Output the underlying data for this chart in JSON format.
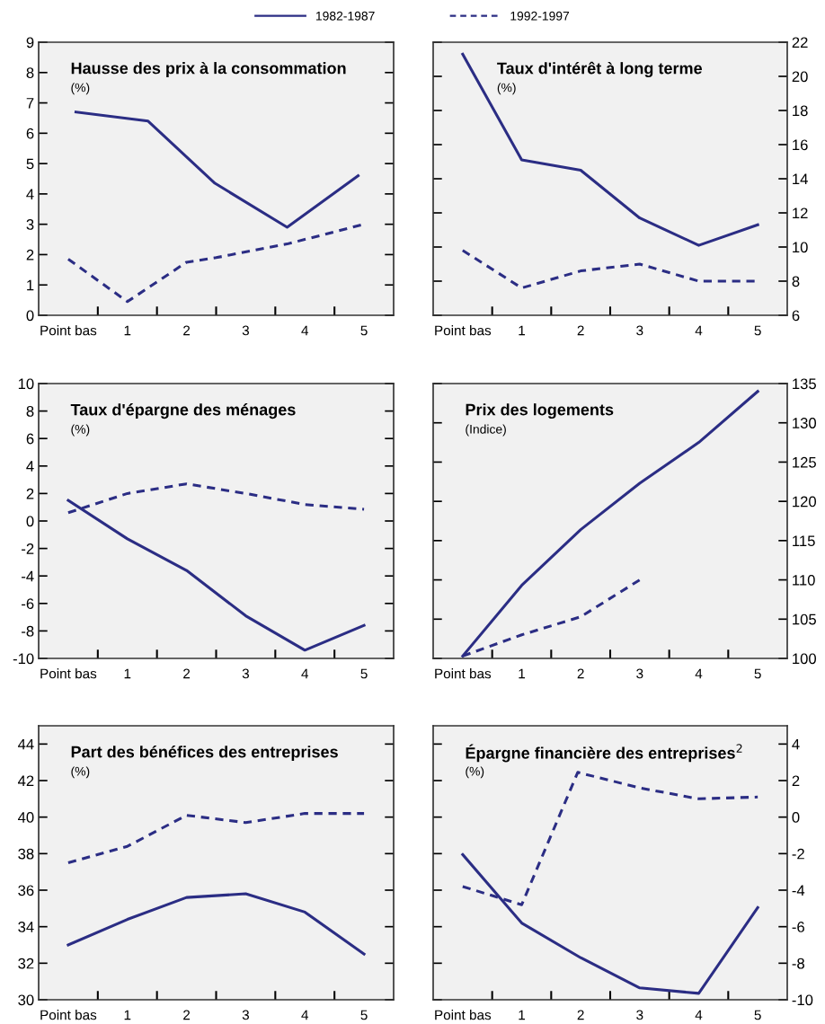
{
  "chart_data": [
    {
      "type": "line",
      "title": "Hausse des prix à la consommation",
      "subtitle": "(%)",
      "legend": "top",
      "xlim": [
        -0.5,
        5.5
      ],
      "xticks": [
        {
          "value": 0,
          "label": "Point bas"
        },
        1,
        2,
        3,
        4,
        5,
        {
          "value": 0.5,
          "label": null
        },
        {
          "value": 1.5,
          "label": null
        },
        {
          "value": 2.5,
          "label": null
        },
        {
          "value": 3.5,
          "label": null
        },
        {
          "value": 4.5,
          "label": null
        }
      ],
      "ylim": [
        0,
        9
      ],
      "yticks": [
        0,
        1,
        2,
        3,
        4,
        5,
        6,
        7,
        8,
        9
      ],
      "series": [
        {
          "name": "1982-1987",
          "color": "#2b2d84",
          "line_style": "solid",
          "x": [
            0.13,
            1.35,
            2.48,
            3.7,
            4.9
          ],
          "values": [
            6.7,
            6.4,
            4.35,
            2.9,
            4.6
          ]
        },
        {
          "name": "1992-1997",
          "color": "#2b2d84",
          "line_style": "dashed",
          "x": [
            0,
            1,
            2,
            2.5,
            3.7,
            5
          ],
          "values": [
            1.85,
            0.45,
            1.75,
            1.9,
            2.35,
            3.0
          ]
        }
      ]
    },
    {
      "type": "line",
      "title": "Taux d'intérêt à long terme",
      "subtitle": "(%)",
      "xlim": [
        -0.5,
        5.5
      ],
      "xticks": [
        {
          "value": 0,
          "label": "Point bas"
        },
        1,
        2,
        3,
        4,
        5,
        {
          "value": 0.5,
          "label": null
        },
        {
          "value": 1.5,
          "label": null
        },
        {
          "value": 2.5,
          "label": null
        },
        {
          "value": 3.5,
          "label": null
        },
        {
          "value": 4.5,
          "label": null
        }
      ],
      "ylim": [
        6,
        22
      ],
      "yticks": [
        6,
        8,
        10,
        12,
        14,
        16,
        18,
        20,
        22
      ],
      "series": [
        {
          "color": "#2b2d84",
          "line_style": "solid",
          "x": [
            0,
            1,
            2,
            3,
            4,
            5
          ],
          "values": [
            21.3,
            15.1,
            14.5,
            11.7,
            10.1,
            11.3
          ]
        },
        {
          "color": "#2b2d84",
          "line_style": "dashed",
          "x": [
            0,
            1,
            2,
            3,
            4,
            5
          ],
          "values": [
            9.8,
            7.6,
            8.6,
            9.0,
            8.0,
            8.0
          ]
        }
      ]
    },
    {
      "type": "line",
      "title": "Taux d'épargne des ménages",
      "subtitle": "(%)",
      "xlim": [
        -0.5,
        5.5
      ],
      "xticks": [
        {
          "value": 0,
          "label": "Point bas"
        },
        1,
        2,
        3,
        4,
        5,
        {
          "value": 0.5,
          "label": null
        },
        {
          "value": 1.5,
          "label": null
        },
        {
          "value": 2.5,
          "label": null
        },
        {
          "value": 3.5,
          "label": null
        },
        {
          "value": 4.5,
          "label": null
        }
      ],
      "ylim": [
        -10,
        10
      ],
      "yticks": [
        -10,
        -8,
        -6,
        -4,
        -2,
        0,
        2,
        4,
        6,
        8,
        10
      ],
      "series": [
        {
          "color": "#2b2d84",
          "line_style": "solid",
          "x": [
            0,
            1,
            2,
            3,
            4,
            5
          ],
          "values": [
            1.5,
            -1.3,
            -3.6,
            -6.9,
            -9.4,
            -7.6
          ]
        },
        {
          "color": "#2b2d84",
          "line_style": "dashed",
          "x": [
            0,
            1,
            2,
            3,
            4,
            5
          ],
          "values": [
            0.6,
            2.0,
            2.7,
            2.0,
            1.2,
            0.85
          ]
        }
      ]
    },
    {
      "type": "line",
      "title": "Prix des logements",
      "subtitle": "(Indice)",
      "xlim": [
        -0.5,
        5.5
      ],
      "xticks": [
        {
          "value": 0,
          "label": "Point bas"
        },
        1,
        2,
        3,
        4,
        5,
        {
          "value": 0.5,
          "label": null
        },
        {
          "value": 1.5,
          "label": null
        },
        {
          "value": 2.5,
          "label": null
        },
        {
          "value": 3.5,
          "label": null
        },
        {
          "value": 4.5,
          "label": null
        }
      ],
      "ylim": [
        100,
        135
      ],
      "yticks": [
        100,
        105,
        110,
        115,
        120,
        125,
        130,
        135
      ],
      "series": [
        {
          "color": "#2b2d84",
          "line_style": "solid",
          "x": [
            0,
            1,
            2,
            3,
            4,
            5
          ],
          "values": [
            100.3,
            109.3,
            116.4,
            122.3,
            127.5,
            134.0
          ]
        },
        {
          "color": "#2b2d84",
          "line_style": "dashed",
          "x": [
            0,
            1,
            2,
            3
          ],
          "values": [
            100.3,
            103.0,
            105.3,
            110.0
          ]
        }
      ]
    },
    {
      "type": "line",
      "title": "Part des bénéfices des entreprises",
      "subtitle": "(%)",
      "xlim": [
        -0.5,
        5.5
      ],
      "xticks": [
        {
          "value": 0,
          "label": "Point bas"
        },
        1,
        2,
        3,
        4,
        5,
        {
          "value": 0.5,
          "label": null
        },
        {
          "value": 1.5,
          "label": null
        },
        {
          "value": 2.5,
          "label": null
        },
        {
          "value": 3.5,
          "label": null
        },
        {
          "value": 4.5,
          "label": null
        }
      ],
      "ylim": [
        30,
        45
      ],
      "yticks": [
        30,
        32,
        34,
        36,
        38,
        40,
        42,
        44
      ],
      "series": [
        {
          "color": "#2b2d84",
          "line_style": "solid",
          "x": [
            0,
            1,
            2,
            3,
            4,
            5
          ],
          "values": [
            33.0,
            34.4,
            35.6,
            35.8,
            34.8,
            32.5
          ]
        },
        {
          "color": "#2b2d84",
          "line_style": "dashed",
          "x": [
            0,
            1,
            2,
            3,
            4,
            5
          ],
          "values": [
            37.5,
            38.4,
            40.1,
            39.7,
            40.2,
            40.2
          ]
        }
      ]
    },
    {
      "type": "line",
      "title": "Épargne financière des entreprises$^{2}$",
      "subtitle": "(%)",
      "xlim": [
        -0.5,
        5.5
      ],
      "xticks": [
        {
          "value": 0,
          "label": "Point bas"
        },
        1,
        2,
        3,
        4,
        5,
        {
          "value": 0.5,
          "label": null
        },
        {
          "value": 1.5,
          "label": null
        },
        {
          "value": 2.5,
          "label": null
        },
        {
          "value": 3.5,
          "label": null
        },
        {
          "value": 4.5,
          "label": null
        }
      ],
      "ylim": [
        -10,
        5
      ],
      "yticks": [
        -10,
        -8,
        -6,
        -4,
        -2,
        0,
        2,
        4
      ],
      "series": [
        {
          "color": "#2b2d84",
          "line_style": "solid",
          "x": [
            0,
            1,
            2,
            3,
            4,
            5
          ],
          "values": [
            -2.05,
            -5.8,
            -7.7,
            -9.35,
            -9.65,
            -4.95
          ]
        },
        {
          "color": "#2b2d84",
          "line_style": "dashed",
          "x": [
            0,
            1,
            1.95,
            3,
            4,
            5
          ],
          "values": [
            -3.8,
            -4.8,
            2.45,
            1.6,
            1.0,
            1.1
          ]
        }
      ]
    }
  ]
}
